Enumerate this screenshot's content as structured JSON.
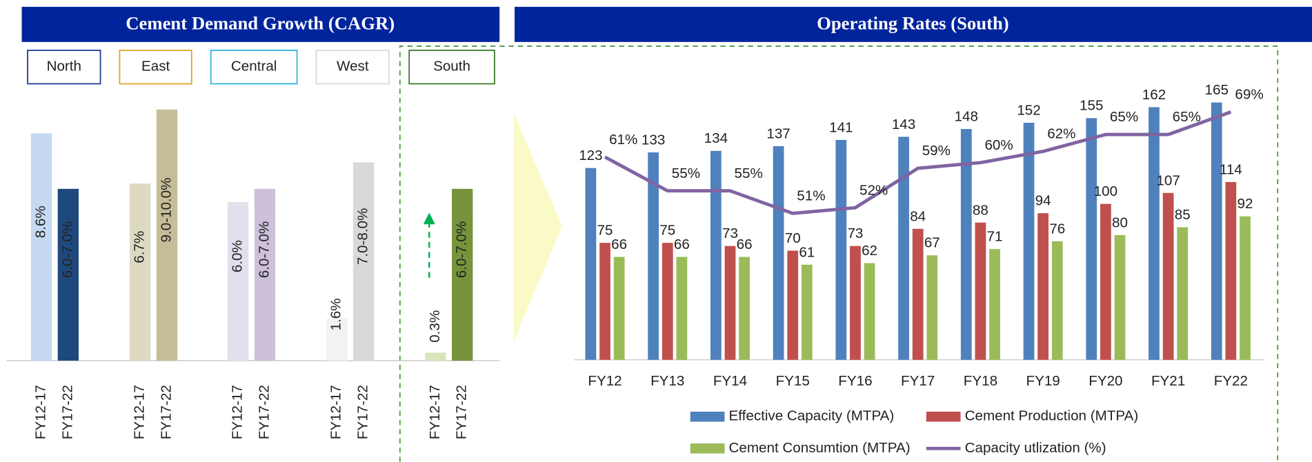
{
  "chart_data": [
    {
      "type": "grouped_bar",
      "title": "Cement Demand Growth (CAGR)",
      "categories": [
        "FY12-17",
        "FY17-22"
      ],
      "groups": [
        {
          "name": "North",
          "border": "#1f3c99",
          "colors": [
            "#c5d9f1",
            "#1f497d"
          ],
          "values": [
            8.6,
            6.5
          ],
          "value_labels": [
            "8.6%",
            "6.0-7.0%"
          ]
        },
        {
          "name": "East",
          "border": "#e0a526",
          "colors": [
            "#ddd9c3",
            "#c4bd97"
          ],
          "values": [
            6.7,
            9.5
          ],
          "value_labels": [
            "6.7%",
            "9.0-10.0%"
          ]
        },
        {
          "name": "Central",
          "border": "#2fb5e0",
          "colors": [
            "#e4dfec",
            "#ccc0da"
          ],
          "values": [
            6.0,
            6.5
          ],
          "value_labels": [
            "6.0%",
            "6.0-7.0%"
          ]
        },
        {
          "name": "West",
          "border": "#d9d9d9",
          "colors": [
            "#f2f2f2",
            "#d9d9d9"
          ],
          "values": [
            1.6,
            7.5
          ],
          "value_labels": [
            "1.6%",
            "7.0-8.0%"
          ]
        },
        {
          "name": "South",
          "border": "#3c7a2a",
          "colors": [
            "#d7e4bc",
            "#77933c"
          ],
          "values": [
            0.3,
            6.5
          ],
          "value_labels": [
            "0.3%",
            "6.0-7.0%"
          ]
        }
      ],
      "ylim": [
        0,
        10
      ]
    },
    {
      "type": "bar_line",
      "title": "Operating Rates (South)",
      "categories": [
        "FY12",
        "FY13",
        "FY14",
        "FY15",
        "FY16",
        "FY17",
        "FY18",
        "FY19",
        "FY20",
        "FY21",
        "FY22"
      ],
      "ylim": [
        0,
        177
      ],
      "y2lim": [
        25,
        74
      ],
      "series": [
        {
          "name": "Effective Capacity (MTPA)",
          "color": "#4f81bd",
          "values": [
            123,
            133,
            134,
            137,
            141,
            143,
            148,
            152,
            155,
            162,
            165
          ]
        },
        {
          "name": "Cement Production (MTPA)",
          "color": "#c0504d",
          "values": [
            75,
            75,
            73,
            70,
            73,
            84,
            88,
            94,
            100,
            107,
            114
          ]
        },
        {
          "name": "Cement Consumtion (MTPA)",
          "color": "#9bbb59",
          "values": [
            66,
            66,
            66,
            61,
            62,
            67,
            71,
            76,
            80,
            85,
            92
          ]
        },
        {
          "name": "Capacity utlization (%)",
          "color": "#8064a2",
          "axis": "y2",
          "type": "line",
          "values": [
            61,
            55,
            55,
            51,
            52,
            59,
            60,
            62,
            65,
            65,
            69
          ],
          "value_labels": [
            "61%",
            "55%",
            "55%",
            "51%",
            "52%",
            "59%",
            "60%",
            "62%",
            "65%",
            "65%",
            "69%"
          ]
        }
      ]
    }
  ]
}
